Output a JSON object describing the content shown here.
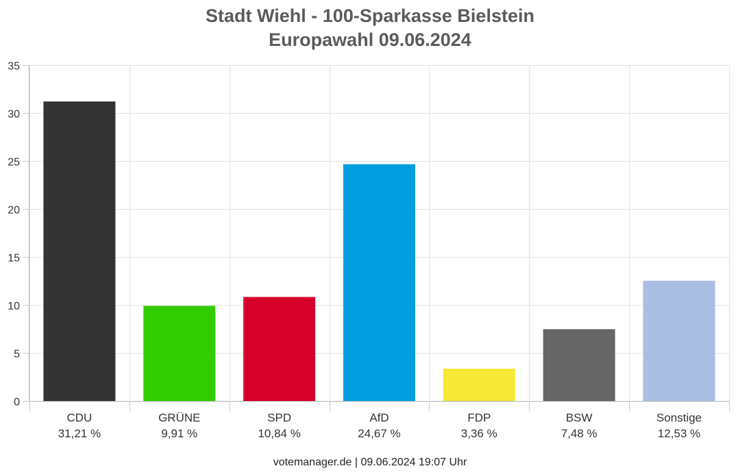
{
  "chart_data": {
    "type": "bar",
    "title": "Stadt Wiehl - 100-Sparkasse Bielstein",
    "subtitle": "Europawahl 09.06.2024",
    "categories": [
      "CDU",
      "GRÜNE",
      "SPD",
      "AfD",
      "FDP",
      "BSW",
      "Sonstige"
    ],
    "value_labels": [
      "31,21 %",
      "9,91 %",
      "10,84 %",
      "24,67 %",
      "3,36 %",
      "7,48 %",
      "12,53 %"
    ],
    "values": [
      31.21,
      9.91,
      10.84,
      24.67,
      3.36,
      7.48,
      12.53
    ],
    "colors": [
      "#333333",
      "#32cd00",
      "#d7002a",
      "#009ee0",
      "#f6e835",
      "#666666",
      "#aabde3"
    ],
    "xlabel": "",
    "ylabel": "",
    "ylim": [
      0,
      35
    ],
    "yticks": [
      0,
      5,
      10,
      15,
      20,
      25,
      30,
      35
    ],
    "grid": true,
    "legend": "none"
  },
  "footer": {
    "source": "votemanager.de | 09.06.2024 19:07 Uhr"
  }
}
